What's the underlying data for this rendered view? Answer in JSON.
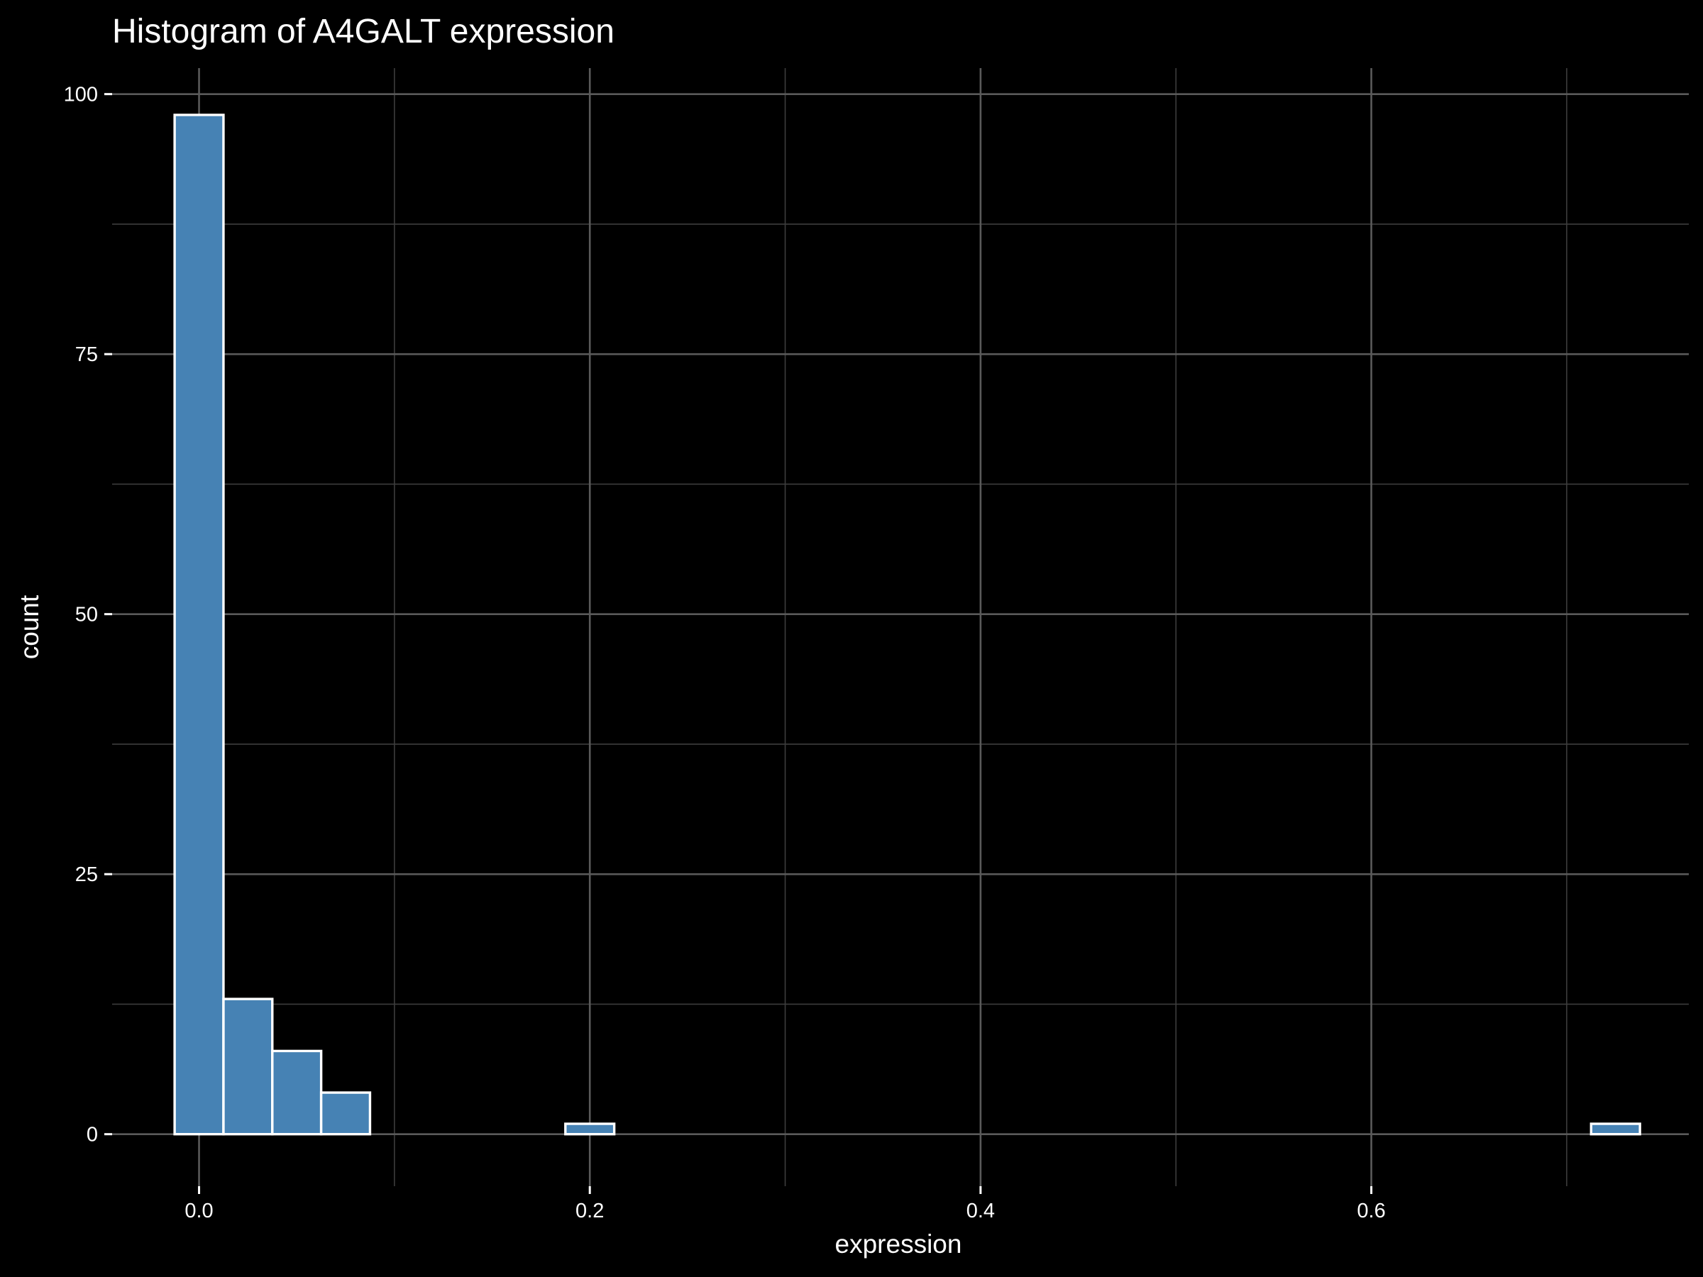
{
  "chart_data": {
    "type": "bar",
    "title": "Histogram of A4GALT expression",
    "xlabel": "expression",
    "ylabel": "count",
    "xlim": [
      -0.0445,
      0.7625
    ],
    "ylim": [
      -5,
      102.5
    ],
    "x_ticks": [
      0.0,
      0.2,
      0.4,
      0.6
    ],
    "x_tick_labels": [
      "0.0",
      "0.2",
      "0.4",
      "0.6"
    ],
    "x_minor_ticks": [
      0.1,
      0.3,
      0.5,
      0.7
    ],
    "y_ticks": [
      0,
      25,
      50,
      75,
      100
    ],
    "y_tick_labels": [
      "0",
      "25",
      "50",
      "75",
      "100"
    ],
    "y_minor_ticks": [
      12.5,
      37.5,
      62.5,
      87.5
    ],
    "bin_width": 0.025,
    "bins": [
      {
        "x0": -0.0125,
        "x1": 0.0125,
        "count": 98
      },
      {
        "x0": 0.0125,
        "x1": 0.0375,
        "count": 13
      },
      {
        "x0": 0.0375,
        "x1": 0.0625,
        "count": 8
      },
      {
        "x0": 0.0625,
        "x1": 0.0875,
        "count": 4
      },
      {
        "x0": 0.0875,
        "x1": 0.1125,
        "count": 0
      },
      {
        "x0": 0.1125,
        "x1": 0.1375,
        "count": 0
      },
      {
        "x0": 0.1375,
        "x1": 0.1625,
        "count": 0
      },
      {
        "x0": 0.1625,
        "x1": 0.1875,
        "count": 0
      },
      {
        "x0": 0.1875,
        "x1": 0.2125,
        "count": 1
      },
      {
        "x0": 0.2125,
        "x1": 0.2375,
        "count": 0
      },
      {
        "x0": 0.2375,
        "x1": 0.2625,
        "count": 0
      },
      {
        "x0": 0.2625,
        "x1": 0.2875,
        "count": 0
      },
      {
        "x0": 0.2875,
        "x1": 0.3125,
        "count": 0
      },
      {
        "x0": 0.3125,
        "x1": 0.3375,
        "count": 0
      },
      {
        "x0": 0.3375,
        "x1": 0.3625,
        "count": 0
      },
      {
        "x0": 0.3625,
        "x1": 0.3875,
        "count": 0
      },
      {
        "x0": 0.3875,
        "x1": 0.4125,
        "count": 0
      },
      {
        "x0": 0.4125,
        "x1": 0.4375,
        "count": 0
      },
      {
        "x0": 0.4375,
        "x1": 0.4625,
        "count": 0
      },
      {
        "x0": 0.4625,
        "x1": 0.4875,
        "count": 0
      },
      {
        "x0": 0.4875,
        "x1": 0.5125,
        "count": 0
      },
      {
        "x0": 0.5125,
        "x1": 0.5375,
        "count": 0
      },
      {
        "x0": 0.5375,
        "x1": 0.5625,
        "count": 0
      },
      {
        "x0": 0.5625,
        "x1": 0.5875,
        "count": 0
      },
      {
        "x0": 0.5875,
        "x1": 0.6125,
        "count": 0
      },
      {
        "x0": 0.6125,
        "x1": 0.6375,
        "count": 0
      },
      {
        "x0": 0.6375,
        "x1": 0.6625,
        "count": 0
      },
      {
        "x0": 0.6625,
        "x1": 0.6875,
        "count": 0
      },
      {
        "x0": 0.6875,
        "x1": 0.7125,
        "count": 0
      },
      {
        "x0": 0.7125,
        "x1": 0.7375,
        "count": 1
      }
    ],
    "grid": true,
    "legend": "none",
    "colors": {
      "background": "#000000",
      "bar_fill": "#4682b4",
      "bar_outline": "#ffffff",
      "text": "#ffffff"
    }
  }
}
